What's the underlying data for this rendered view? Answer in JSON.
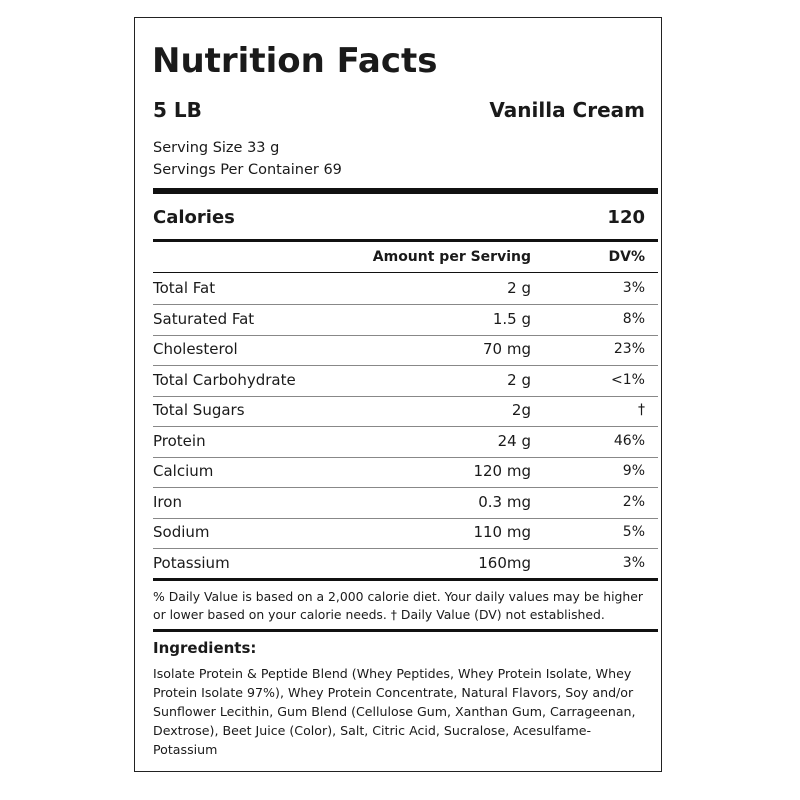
{
  "header": {
    "title": "Nutrition Facts",
    "size": "5 LB",
    "flavor": "Vanilla Cream",
    "serving_size": "Serving Size 33 g",
    "servings_per_container": "Servings Per Container 69"
  },
  "calories": {
    "label": "Calories",
    "value": "120"
  },
  "table": {
    "columns": [
      "Amount per Serving",
      "DV%"
    ],
    "rows": [
      [
        "Total Fat",
        "2 g",
        "3%"
      ],
      [
        "Saturated Fat",
        "1.5 g",
        "8%"
      ],
      [
        "Cholesterol",
        "70 mg",
        "23%"
      ],
      [
        "Total Carbohydrate",
        "2 g",
        "<1%"
      ],
      [
        "Total Sugars",
        "2g",
        "†"
      ],
      [
        "Protein",
        "24 g",
        "46%"
      ],
      [
        "Calcium",
        "120 mg",
        "9%"
      ],
      [
        "Iron",
        "0.3 mg",
        "2%"
      ],
      [
        "Sodium",
        "110 mg",
        "5%"
      ],
      [
        "Potassium",
        "160mg",
        "3%"
      ]
    ]
  },
  "footnote": "% Daily Value is based on a 2,000 calorie diet. Your daily values may be higher or lower based on your calorie needs. † Daily Value (DV) not established.",
  "ingredients": {
    "heading": "Ingredients:",
    "text": "Isolate Protein & Peptide Blend (Whey Peptides, Whey Protein Isolate, Whey Protein Isolate 97%), Whey Protein Concentrate, Natural Flavors, Soy and/or Sunflower Lecithin, Gum Blend (Cellulose Gum, Xanthan Gum, Carrageenan, Dextrose), Beet Juice (Color), Salt, Citric Acid, Sucralose, Acesulfame-Potassium"
  }
}
